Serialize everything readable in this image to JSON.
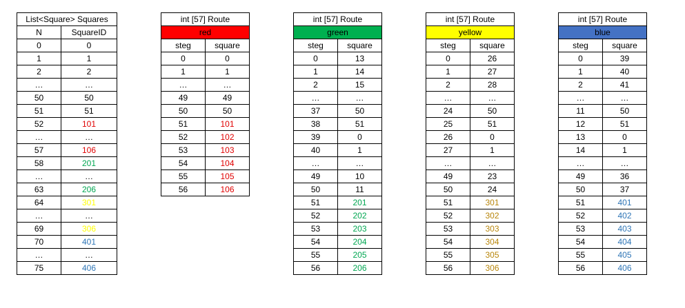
{
  "colors": {
    "text_default": "#000000",
    "red_header_bg": "#ff0000",
    "green_header_bg": "#00b050",
    "yellow_header_bg": "#ffff00",
    "blue_header_bg": "#4472c4",
    "red_value": "#e00000",
    "green_value": "#00a651",
    "yellow_value_squares": "#ffff00",
    "yellow_value_route": "#b8860b",
    "blue_value": "#2e75b6"
  },
  "squares_table": {
    "title": "List<Square> Squares",
    "headers": [
      "N",
      "SquareID"
    ],
    "rows": [
      [
        "0",
        "0",
        ""
      ],
      [
        "1",
        "1",
        ""
      ],
      [
        "2",
        "2",
        ""
      ],
      [
        "…",
        "…",
        ""
      ],
      [
        "50",
        "50",
        ""
      ],
      [
        "51",
        "51",
        ""
      ],
      [
        "52",
        "101",
        "red"
      ],
      [
        "…",
        "…",
        ""
      ],
      [
        "57",
        "106",
        "red"
      ],
      [
        "58",
        "201",
        "green"
      ],
      [
        "…",
        "…",
        ""
      ],
      [
        "63",
        "206",
        "green"
      ],
      [
        "64",
        "301",
        "yellow"
      ],
      [
        "…",
        "…",
        ""
      ],
      [
        "69",
        "306",
        "yellow"
      ],
      [
        "70",
        "401",
        "blue"
      ],
      [
        "…",
        "…",
        ""
      ],
      [
        "75",
        "406",
        "blue"
      ]
    ]
  },
  "routes": [
    {
      "id": "red",
      "title": "int [57] Route",
      "color_name": "red",
      "headers": [
        "steg",
        "square"
      ],
      "rows": [
        [
          "0",
          "0",
          ""
        ],
        [
          "1",
          "1",
          ""
        ],
        [
          "…",
          "…",
          ""
        ],
        [
          "49",
          "49",
          ""
        ],
        [
          "50",
          "50",
          ""
        ],
        [
          "51",
          "101",
          "red"
        ],
        [
          "52",
          "102",
          "red"
        ],
        [
          "53",
          "103",
          "red"
        ],
        [
          "54",
          "104",
          "red"
        ],
        [
          "55",
          "105",
          "red"
        ],
        [
          "56",
          "106",
          "red"
        ]
      ]
    },
    {
      "id": "green",
      "title": "int [57] Route",
      "color_name": "green",
      "headers": [
        "steg",
        "square"
      ],
      "rows": [
        [
          "0",
          "13",
          ""
        ],
        [
          "1",
          "14",
          ""
        ],
        [
          "2",
          "15",
          ""
        ],
        [
          "…",
          "…",
          ""
        ],
        [
          "37",
          "50",
          ""
        ],
        [
          "38",
          "51",
          ""
        ],
        [
          "39",
          "0",
          ""
        ],
        [
          "40",
          "1",
          ""
        ],
        [
          "…",
          "…",
          ""
        ],
        [
          "49",
          "10",
          ""
        ],
        [
          "50",
          "11",
          ""
        ],
        [
          "51",
          "201",
          "green"
        ],
        [
          "52",
          "202",
          "green"
        ],
        [
          "53",
          "203",
          "green"
        ],
        [
          "54",
          "204",
          "green"
        ],
        [
          "55",
          "205",
          "green"
        ],
        [
          "56",
          "206",
          "green"
        ]
      ]
    },
    {
      "id": "yellow",
      "title": "int [57] Route",
      "color_name": "yellow",
      "headers": [
        "steg",
        "square"
      ],
      "rows": [
        [
          "0",
          "26",
          ""
        ],
        [
          "1",
          "27",
          ""
        ],
        [
          "2",
          "28",
          ""
        ],
        [
          "…",
          "…",
          ""
        ],
        [
          "24",
          "50",
          ""
        ],
        [
          "25",
          "51",
          ""
        ],
        [
          "26",
          "0",
          ""
        ],
        [
          "27",
          "1",
          ""
        ],
        [
          "…",
          "…",
          ""
        ],
        [
          "49",
          "23",
          ""
        ],
        [
          "50",
          "24",
          ""
        ],
        [
          "51",
          "301",
          "yellow"
        ],
        [
          "52",
          "302",
          "yellow"
        ],
        [
          "53",
          "303",
          "yellow"
        ],
        [
          "54",
          "304",
          "yellow"
        ],
        [
          "55",
          "305",
          "yellow"
        ],
        [
          "56",
          "306",
          "yellow"
        ]
      ]
    },
    {
      "id": "blue",
      "title": "int [57] Route",
      "color_name": "blue",
      "headers": [
        "steg",
        "square"
      ],
      "rows": [
        [
          "0",
          "39",
          ""
        ],
        [
          "1",
          "40",
          ""
        ],
        [
          "2",
          "41",
          ""
        ],
        [
          "…",
          "…",
          ""
        ],
        [
          "11",
          "50",
          ""
        ],
        [
          "12",
          "51",
          ""
        ],
        [
          "13",
          "0",
          ""
        ],
        [
          "14",
          "1",
          ""
        ],
        [
          "…",
          "…",
          ""
        ],
        [
          "49",
          "36",
          ""
        ],
        [
          "50",
          "37",
          ""
        ],
        [
          "51",
          "401",
          "blue"
        ],
        [
          "52",
          "402",
          "blue"
        ],
        [
          "53",
          "403",
          "blue"
        ],
        [
          "54",
          "404",
          "blue"
        ],
        [
          "55",
          "405",
          "blue"
        ],
        [
          "56",
          "406",
          "blue"
        ]
      ]
    }
  ]
}
